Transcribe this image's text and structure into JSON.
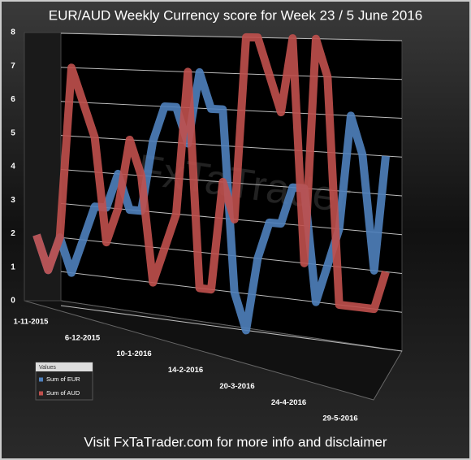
{
  "chart_data": {
    "type": "line",
    "title": "EUR/AUD Weekly Currency score for Week 23 / 5 June 2016",
    "footer": "Visit FxTaTrader.com for more info and disclaimer",
    "watermark": "FxTaTrader",
    "legend_title": "Values",
    "categories": [
      "1-11-2015",
      null,
      null,
      null,
      null,
      "6-12-2015",
      null,
      null,
      null,
      null,
      "10-1-2016",
      null,
      null,
      null,
      null,
      "14-2-2016",
      null,
      null,
      null,
      null,
      "20-3-2016",
      null,
      null,
      null,
      null,
      "24-4-2016",
      null,
      null,
      null,
      null,
      "29-5-2016"
    ],
    "series": [
      {
        "name": "Sum of EUR",
        "color": "#4f81bd",
        "values": [
          2,
          1,
          2,
          1,
          2,
          3,
          3,
          4,
          3,
          3,
          5,
          6,
          6,
          5,
          7,
          6,
          6,
          1,
          0,
          2,
          3,
          3,
          4,
          4,
          1,
          2,
          3,
          6,
          5,
          2,
          5
        ]
      },
      {
        "name": "Sum of AUD",
        "color": "#c0504d",
        "values": [
          2,
          1,
          2,
          7,
          6,
          5,
          2,
          3,
          5,
          4,
          1,
          2,
          3,
          7,
          1,
          1,
          4,
          3,
          8,
          8,
          7,
          6,
          8,
          2,
          8,
          7,
          1,
          1,
          1,
          1,
          2
        ]
      }
    ],
    "ylim": [
      0,
      8
    ],
    "yticks": [
      0,
      1,
      2,
      3,
      4,
      5,
      6,
      7,
      8
    ],
    "grid": true
  }
}
